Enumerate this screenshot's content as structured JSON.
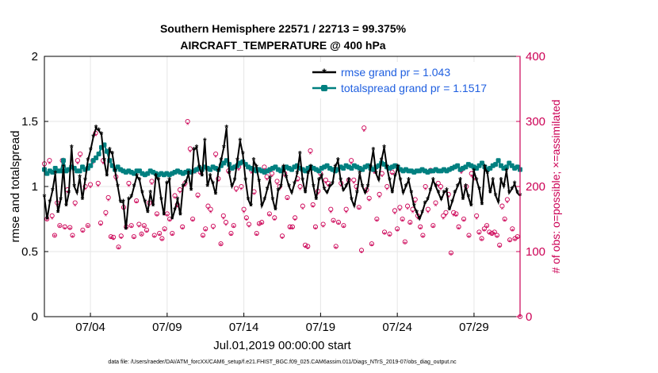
{
  "chart_data": {
    "type": "line",
    "title_line1": "Southern Hemisphere 22571 / 22713 = 99.375%",
    "title_line2": "AIRCRAFT_TEMPERATURE @ 400 hPa",
    "xlabel": "Jul.01,2019 00:00:00 start",
    "ylabel_left": "rmse and totalspread",
    "ylabel_right": "# of obs: o=possible; ×=assimilated",
    "footer": "data file: /Users/raeder/DAI/ATM_forcXX/CAM6_setup/f.e21.FHIST_BGC.f09_025.CAM6assim.011/Diags_NTrS_2019-07/obs_diag_output.nc",
    "xlim": [
      1,
      32
    ],
    "ylim_left": [
      0,
      2
    ],
    "ylim_right": [
      0,
      400
    ],
    "x_ticks": [
      {
        "x": 4,
        "label": "07/04"
      },
      {
        "x": 9,
        "label": "07/09"
      },
      {
        "x": 14,
        "label": "07/14"
      },
      {
        "x": 19,
        "label": "07/19"
      },
      {
        "x": 24,
        "label": "07/24"
      },
      {
        "x": 29,
        "label": "07/29"
      }
    ],
    "y_ticks_left": [
      "0",
      "0.5",
      "1",
      "1.5",
      "2"
    ],
    "y_ticks_right": [
      "0",
      "100",
      "200",
      "300",
      "400"
    ],
    "grid": true,
    "legend_position": "top-right",
    "colors": {
      "rmse": "#000000",
      "spread": "#008080",
      "obs": "#cc0055"
    },
    "series": [
      {
        "name": "rmse grand pr = 1.043",
        "key": "rmse",
        "values": [
          0.92,
          0.75,
          0.88,
          0.97,
          1.1,
          0.8,
          0.9,
          1.15,
          0.85,
          0.95,
          1.3,
          1.0,
          0.95,
          1.07,
          0.9,
          1.05,
          1.2,
          1.28,
          1.38,
          1.45,
          1.43,
          1.4,
          1.2,
          1.08,
          1.28,
          1.25,
          1.12,
          1.0,
          0.88,
          0.88,
          0.67,
          0.9,
          0.92,
          1.0,
          1.08,
          1.05,
          0.95,
          0.88,
          0.8,
          0.95,
          0.85,
          1.08,
          1.05,
          0.9,
          0.78,
          1.02,
          1.05,
          0.75,
          0.82,
          0.9,
          0.78,
          1.0,
          1.03,
          1.1,
          0.97,
          1.28,
          1.3,
          1.15,
          1.08,
          1.35,
          1.0,
          1.08,
          1.02,
          0.94,
          1.12,
          1.2,
          1.3,
          1.45,
          1.1,
          1.0,
          1.05,
          1.2,
          1.35,
          1.25,
          1.05,
          0.9,
          0.85,
          1.2,
          1.15,
          1.04,
          0.85,
          0.9,
          0.98,
          1.06,
          0.9,
          0.82,
          0.97,
          1.0,
          1.15,
          1.07,
          1.0,
          0.95,
          1.02,
          1.1,
          1.25,
          1.05,
          0.95,
          1.1,
          1.15,
          1.0,
          0.9,
          1.05,
          1.08,
          0.98,
          0.95,
          1.0,
          1.02,
          1.15,
          1.2,
          1.05,
          0.97,
          1.0,
          1.05,
          0.9,
          0.85,
          0.95,
          1.1,
          1.0,
          0.95,
          1.0,
          1.15,
          1.28,
          1.1,
          1.05,
          1.2,
          1.3,
          1.15,
          1.05,
          0.95,
          1.08,
          1.15,
          1.05,
          0.95,
          1.0,
          1.05,
          0.95,
          0.85,
          0.8,
          0.75,
          0.8,
          0.87,
          0.9,
          0.97,
          1.05,
          1.0,
          0.95,
          0.9,
          0.95,
          0.97,
          0.82,
          0.88,
          0.95,
          1.0,
          1.05,
          0.9,
          1.0,
          0.92,
          0.85,
          1.12,
          1.05,
          0.98,
          0.86,
          1.15,
          1.1,
          0.95,
          1.05,
          0.93,
          0.88,
          1.05,
          1.0,
          1.12,
          0.95,
          0.98,
          1.02,
          0.95,
          0.93
        ]
      },
      {
        "name": "totalspread grand pr = 1.1517",
        "key": "spread",
        "values": [
          1.13,
          1.1,
          1.12,
          1.11,
          1.14,
          1.12,
          1.12,
          1.2,
          1.12,
          1.13,
          1.15,
          1.14,
          1.12,
          1.12,
          1.15,
          1.13,
          1.14,
          1.16,
          1.2,
          1.22,
          1.25,
          1.3,
          1.32,
          1.27,
          1.2,
          1.16,
          1.13,
          1.15,
          1.13,
          1.12,
          1.11,
          1.12,
          1.11,
          1.1,
          1.12,
          1.12,
          1.1,
          1.09,
          1.1,
          1.12,
          1.11,
          1.1,
          1.09,
          1.1,
          1.09,
          1.1,
          1.09,
          1.1,
          1.11,
          1.12,
          1.11,
          1.1,
          1.11,
          1.12,
          1.11,
          1.12,
          1.13,
          1.14,
          1.13,
          1.15,
          1.14,
          1.13,
          1.15,
          1.14,
          1.13,
          1.16,
          1.18,
          1.2,
          1.17,
          1.14,
          1.15,
          1.16,
          1.18,
          1.19,
          1.17,
          1.15,
          1.14,
          1.13,
          1.12,
          1.13,
          1.12,
          1.11,
          1.12,
          1.13,
          1.14,
          1.15,
          1.13,
          1.12,
          1.14,
          1.15,
          1.14,
          1.13,
          1.15,
          1.16,
          1.14,
          1.13,
          1.12,
          1.14,
          1.15,
          1.14,
          1.13,
          1.12,
          1.14,
          1.15,
          1.16,
          1.14,
          1.13,
          1.12,
          1.13,
          1.15,
          1.14,
          1.16,
          1.15,
          1.14,
          1.16,
          1.15,
          1.14,
          1.13,
          1.15,
          1.16,
          1.14,
          1.13,
          1.15,
          1.16,
          1.18,
          1.17,
          1.15,
          1.14,
          1.15,
          1.16,
          1.15,
          1.13,
          1.12,
          1.13,
          1.12,
          1.12,
          1.11,
          1.12,
          1.12,
          1.13,
          1.12,
          1.11,
          1.12,
          1.12,
          1.13,
          1.12,
          1.12,
          1.13,
          1.12,
          1.13,
          1.14,
          1.15,
          1.16,
          1.13,
          1.14,
          1.15,
          1.17,
          1.16,
          1.15,
          1.14,
          1.16,
          1.18,
          1.15,
          1.13,
          1.14,
          1.16,
          1.17,
          1.2,
          1.16,
          1.14,
          1.15,
          1.18,
          1.16,
          1.14,
          1.15,
          1.13
        ]
      },
      {
        "name": "obs possible",
        "key": "obs_possible",
        "axis": "right",
        "values": [
          235,
          150,
          240,
          155,
          125,
          175,
          140,
          240,
          138,
          195,
          137,
          125,
          175,
          240,
          250,
          133,
          200,
          140,
          203,
          240,
          282,
          205,
          144,
          240,
          160,
          183,
          123,
          122,
          215,
          107,
          124,
          168,
          138,
          205,
          140,
          123,
          178,
          142,
          127,
          140,
          133,
          175,
          208,
          125,
          158,
          128,
          120,
          135,
          158,
          150,
          128,
          186,
          172,
          195,
          138,
          205,
          300,
          258,
          150,
          225,
          187,
          222,
          125,
          135,
          170,
          165,
          139,
          250,
          212,
          112,
          155,
          145,
          224,
          128,
          140,
          197,
          230,
          200,
          165,
          152,
          142,
          225,
          192,
          128,
          143,
          145,
          230,
          215,
          158,
          220,
          152,
          208,
          200,
          124,
          220,
          183,
          138,
          138,
          152,
          212,
          200,
          170,
          110,
          108,
          255,
          172,
          138,
          193,
          220,
          142,
          210,
          205,
          165,
          148,
          108,
          145,
          205,
          140,
          165,
          210,
          240,
          210,
          200,
          168,
          102,
          290,
          195,
          182,
          112,
          225,
          150,
          188,
          220,
          130,
          200,
          127,
          222,
          163,
          135,
          168,
          150,
          115,
          170,
          145,
          165,
          180,
          155,
          138,
          125,
          200,
          165,
          225,
          140,
          175,
          205,
          200,
          155,
          160,
          188,
          98,
          160,
          158,
          138,
          225,
          150,
          200,
          125,
          220,
          215,
          155,
          130,
          120,
          135,
          140,
          130,
          128,
          130,
          125,
          110,
          170,
          150,
          180,
          118,
          135,
          120,
          123,
          0
        ]
      },
      {
        "name": "obs assimilated",
        "key": "obs_used",
        "axis": "right",
        "values": [
          230,
          148,
          235,
          150,
          123,
          170,
          138,
          235,
          135,
          190,
          134,
          122,
          170,
          235,
          245,
          130,
          195,
          138,
          198,
          235,
          278,
          200,
          140,
          235,
          155,
          178,
          120,
          118,
          210,
          104,
          120,
          165,
          135,
          200,
          137,
          120,
          175,
          138,
          125,
          137,
          130,
          170,
          203,
          122,
          155,
          125,
          117,
          132,
          155,
          147,
          125,
          182,
          168,
          190,
          135,
          200,
          295,
          253,
          147,
          220,
          183,
          218,
          122,
          132,
          165,
          160,
          135,
          245,
          208,
          110,
          150,
          140,
          220,
          125,
          137,
          192,
          225,
          195,
          160,
          148,
          138,
          220,
          188,
          125,
          140,
          142,
          225,
          210,
          155,
          215,
          148,
          203,
          195,
          120,
          215,
          180,
          135,
          135,
          148,
          208,
          195,
          165,
          106,
          104,
          250,
          168,
          135,
          188,
          215,
          138,
          205,
          200,
          160,
          145,
          105,
          142,
          200,
          137,
          160,
          205,
          235,
          205,
          195,
          165,
          98,
          285,
          190,
          178,
          109,
          220,
          147,
          183,
          215,
          127,
          195,
          124,
          218,
          158,
          132,
          163,
          147,
          112,
          165,
          142,
          160,
          175,
          150,
          135,
          122,
          195,
          160,
          220,
          137,
          170,
          200,
          195,
          150,
          155,
          183,
          95,
          155,
          154,
          135,
          220,
          147,
          195,
          122,
          215,
          210,
          150,
          127,
          117,
          132,
          137,
          127,
          125,
          127,
          122,
          107,
          165,
          147,
          175,
          115,
          132,
          117,
          120,
          0
        ]
      }
    ]
  }
}
